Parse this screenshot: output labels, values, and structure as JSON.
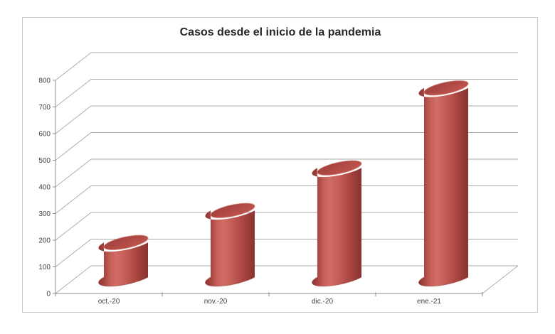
{
  "chart_data": {
    "type": "bar",
    "subtype": "cylinder-3d",
    "title": "Casos desde el inicio de la pandemia",
    "categories": [
      "oct.-20",
      "nov.-20",
      "dic.-20",
      "ene.-21"
    ],
    "values": [
      130,
      250,
      410,
      710
    ],
    "xlabel": "",
    "ylabel": "",
    "ylim": [
      0,
      800
    ],
    "ytick_step": 100,
    "grid": true,
    "legend": false,
    "colors": {
      "bar_main": "#c0504d",
      "bar_body_gradient": [
        "#8e3431",
        "#9d3e3a",
        "#c65f58",
        "#d06d64",
        "#c75f58",
        "#b04a45",
        "#953a37",
        "#8a3330"
      ],
      "bar_top_gradient": [
        "#9e3f3d",
        "#b34b46",
        "#c4574f"
      ],
      "bar_top_rim": "#d0827a",
      "bar_bottom_rim": "#8a2f2d",
      "grid_line": "#a9a9a9",
      "axis_line": "#8c8c8c",
      "label_text": "#404040",
      "title_text": "#262626",
      "frame_border": "#c9c9c9",
      "background": "#ffffff"
    }
  }
}
